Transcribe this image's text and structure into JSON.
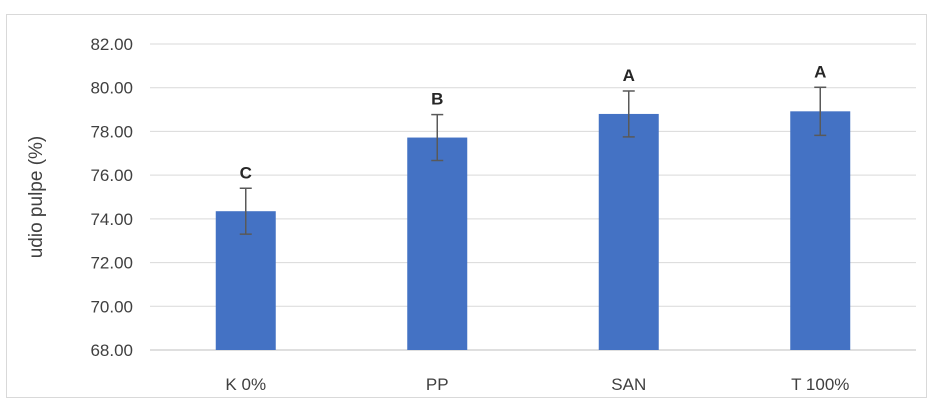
{
  "chart_data": {
    "type": "bar",
    "title": "",
    "xlabel": "",
    "ylabel": "udio pulpe (%)",
    "ylim": [
      68,
      82
    ],
    "yticks": [
      "68.00",
      "70.00",
      "72.00",
      "74.00",
      "76.00",
      "78.00",
      "80.00",
      "82.00"
    ],
    "grid": true,
    "legend": "none",
    "categories": [
      "K 0%",
      "PP",
      "SAN",
      "T 100%"
    ],
    "values": [
      74.35,
      77.72,
      78.8,
      78.92
    ],
    "error": [
      1.05,
      1.05,
      1.05,
      1.1
    ],
    "significance_labels": [
      "C",
      "B",
      "A",
      "A"
    ],
    "colors": {
      "bar": "#4472c4",
      "grid": "#d9d9d9",
      "error_bar": "#595959",
      "text": "#404040"
    }
  }
}
